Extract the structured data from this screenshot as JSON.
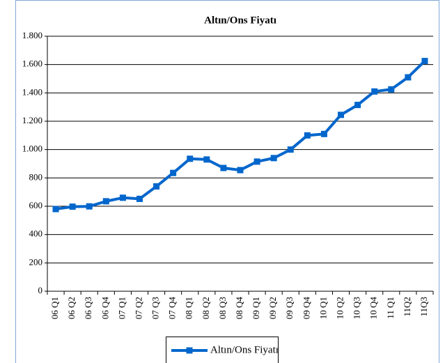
{
  "chart_data": {
    "type": "line",
    "title": "Altın/Ons Fiyatı",
    "categories": [
      "06 Q1",
      "06 Q2",
      "06 Q3",
      "06 Q4",
      "07 Q1",
      "07 Q2",
      "07 Q3",
      "07 Q4",
      "08 Q1",
      "08 Q2",
      "08 Q3",
      "08 Q4",
      "09 Q1",
      "09 Q2",
      "09 Q3",
      "09 Q4",
      "10 Q1",
      "10 Q2",
      "10 Q3",
      "10 Q4",
      "11 Q1",
      "11Q2",
      "11Q3"
    ],
    "series": [
      {
        "name": "Altın/Ons Fiyatı",
        "color": "#0066cc",
        "values": [
          580,
          597,
          599,
          635,
          660,
          652,
          740,
          835,
          935,
          930,
          870,
          855,
          915,
          940,
          1000,
          1100,
          1110,
          1245,
          1315,
          1410,
          1425,
          1510,
          1625
        ]
      }
    ],
    "ylim": [
      0,
      1800
    ],
    "yticks": [
      0,
      200,
      400,
      600,
      800,
      {
        "value": 1000,
        "label": "1.000"
      },
      {
        "value": 1200,
        "label": "1.200"
      },
      {
        "value": 1400,
        "label": "1.400"
      },
      {
        "value": 1600,
        "label": "1.600"
      },
      {
        "value": 1800,
        "label": "1.800"
      }
    ],
    "grid": true,
    "legend": "bottom"
  }
}
